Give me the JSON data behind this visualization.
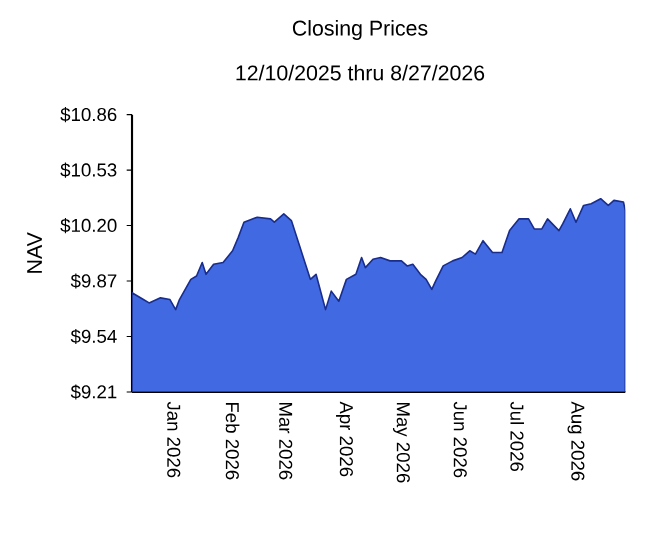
{
  "chart_data": {
    "type": "area",
    "title": "Closing Prices",
    "subtitle": "12/10/2025 thru 8/27/2026",
    "ylabel": "NAV",
    "x": [
      "2025-12-10",
      "2025-12-16",
      "2025-12-19",
      "2025-12-25",
      "2025-12-30",
      "2026-01-02",
      "2026-01-04",
      "2026-01-10",
      "2026-01-13",
      "2026-01-16",
      "2026-01-18",
      "2026-01-22",
      "2026-01-27",
      "2026-02-01",
      "2026-02-04",
      "2026-02-07",
      "2026-02-14",
      "2026-02-21",
      "2026-02-23",
      "2026-02-28",
      "2026-03-04",
      "2026-03-08",
      "2026-03-14",
      "2026-03-17",
      "2026-03-22",
      "2026-03-25",
      "2026-03-29",
      "2026-04-02",
      "2026-04-07",
      "2026-04-10",
      "2026-04-12",
      "2026-04-16",
      "2026-04-20",
      "2026-04-25",
      "2026-05-01",
      "2026-05-04",
      "2026-05-07",
      "2026-05-11",
      "2026-05-14",
      "2026-05-17",
      "2026-05-19",
      "2026-05-23",
      "2026-05-28",
      "2026-06-02",
      "2026-06-06",
      "2026-06-09",
      "2026-06-13",
      "2026-06-18",
      "2026-06-23",
      "2026-06-27",
      "2026-07-02",
      "2026-07-07",
      "2026-07-10",
      "2026-07-14",
      "2026-07-17",
      "2026-07-23",
      "2026-07-25",
      "2026-07-29",
      "2026-08-01",
      "2026-08-05",
      "2026-08-09",
      "2026-08-14",
      "2026-08-18",
      "2026-08-21",
      "2026-08-26",
      "2026-08-27"
    ],
    "series": [
      {
        "color": "#4169e1",
        "values": [
          9.8,
          9.76,
          9.74,
          9.77,
          9.76,
          9.7,
          9.76,
          9.88,
          9.9,
          9.98,
          9.91,
          9.97,
          9.98,
          10.05,
          10.13,
          10.22,
          10.25,
          10.24,
          10.22,
          10.27,
          10.23,
          10.09,
          9.88,
          9.91,
          9.7,
          9.81,
          9.75,
          9.88,
          9.91,
          10.01,
          9.95,
          10.0,
          10.01,
          9.99,
          9.99,
          9.96,
          9.97,
          9.91,
          9.88,
          9.82,
          9.87,
          9.96,
          9.99,
          10.01,
          10.05,
          10.03,
          10.11,
          10.04,
          10.04,
          10.17,
          10.24,
          10.24,
          10.18,
          10.18,
          10.24,
          10.17,
          10.21,
          10.3,
          10.22,
          10.32,
          10.33,
          10.36,
          10.32,
          10.35,
          10.34,
          10.29
        ]
      }
    ],
    "xlim": [
      "2025-12-10",
      "2026-08-27"
    ],
    "xticks": [
      {
        "value": "2026-01-01",
        "label": "Jan 2026"
      },
      {
        "value": "2026-02-01",
        "label": "Feb 2026"
      },
      {
        "value": "2026-03-01",
        "label": "Mar 2026"
      },
      {
        "value": "2026-04-01",
        "label": "Apr 2026"
      },
      {
        "value": "2026-05-01",
        "label": "May 2026"
      },
      {
        "value": "2026-06-01",
        "label": "Jun 2026"
      },
      {
        "value": "2026-07-01",
        "label": "Jul 2026"
      },
      {
        "value": "2026-08-01",
        "label": "Aug 2026"
      }
    ],
    "ylim": [
      9.21,
      10.86
    ],
    "yticks": [
      {
        "value": 9.21,
        "label": "$9.21"
      },
      {
        "value": 9.54,
        "label": "$9.54"
      },
      {
        "value": 9.87,
        "label": "$9.87"
      },
      {
        "value": 10.2,
        "label": "$10.20"
      },
      {
        "value": 10.53,
        "label": "$10.53"
      },
      {
        "value": 10.86,
        "label": "$10.86"
      }
    ],
    "tick_labels": true
  }
}
